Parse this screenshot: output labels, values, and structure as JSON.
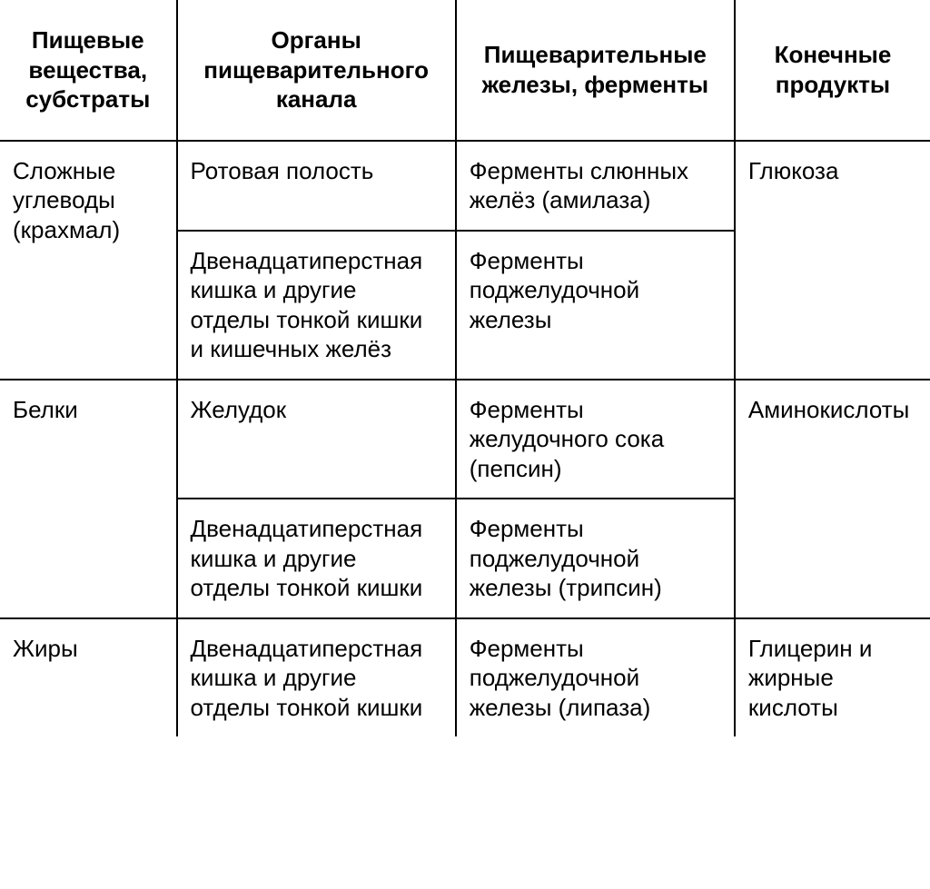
{
  "table": {
    "type": "table",
    "background_color": "#ffffff",
    "border_color": "#000000",
    "border_width": 2,
    "font_family": "Arial, Helvetica, sans-serif",
    "header_fontsize": 26,
    "cell_fontsize": 26,
    "header_fontweight": "bold",
    "cell_fontweight": "normal",
    "text_color": "#000000",
    "column_widths_pct": [
      19,
      30,
      30,
      21
    ],
    "columns": [
      "Пищевые вещества, субстраты",
      "Органы пищеварительного канала",
      "Пищеварительные железы, ферменты",
      "Конечные продукты"
    ],
    "header_display": {
      "c2": "Пищеваритель­ные железы, ферменты"
    },
    "rows": [
      {
        "c0": "Сложные углеводы (крахмал)",
        "c0_rowspan": 2,
        "c1": "Ротовая полость",
        "c2": "Ферменты слюнных желёз (амилаза)",
        "c3": "Глюкоза",
        "c3_rowspan": 2
      },
      {
        "c1": "Двенадцатиперст­ная кишка и другие отделы тонкой кишки и кишечных желёз",
        "c2": "Ферменты поджелудочной железы"
      },
      {
        "c0": "Белки",
        "c0_rowspan": 2,
        "c1": "Желудок",
        "c2": "Ферменты желудочного сока (пепсин)",
        "c3": "Амино­кислоты",
        "c3_rowspan": 2
      },
      {
        "c1": "Двенадцатиперст­ная кишка и другие отделы тонкой кишки",
        "c2": "Ферменты поджелудочной железы (трипсин)"
      },
      {
        "c0": "Жиры",
        "c1": "Двенадцатиперст­ная кишка и другие отделы тонкой кишки",
        "c2": "Ферменты поджелудочной железы (липаза)",
        "c3": "Глицерин и жирные кислоты"
      }
    ]
  }
}
